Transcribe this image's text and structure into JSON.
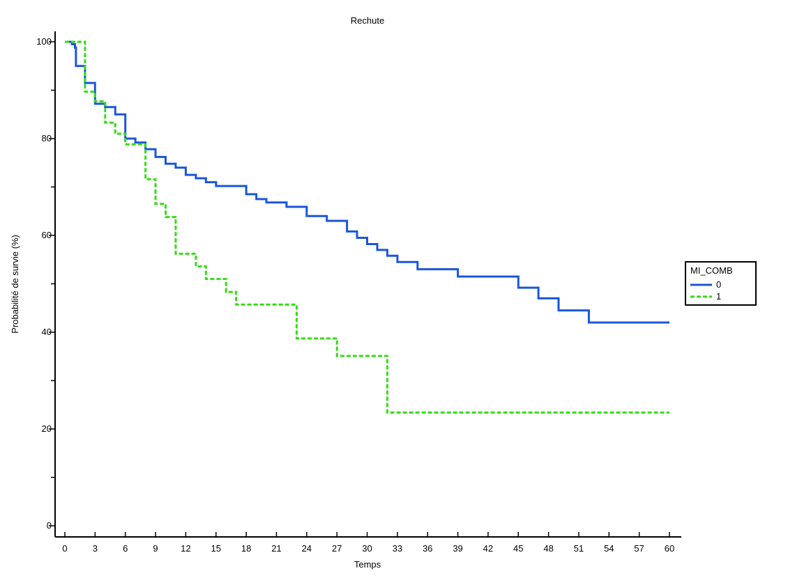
{
  "chart_data": {
    "type": "line",
    "subtype": "kaplan-meier step",
    "title": "Rechute",
    "xlabel": "Temps",
    "ylabel": "Probabilité de survie (%)",
    "xlim": [
      0,
      60
    ],
    "ylim": [
      0,
      100
    ],
    "x_ticks": [
      "0",
      "3",
      "6",
      "9",
      "12",
      "15",
      "18",
      "21",
      "24",
      "27",
      "30",
      "33",
      "36",
      "39",
      "42",
      "45",
      "48",
      "51",
      "54",
      "57",
      "60"
    ],
    "y_ticks": [
      "0",
      "20",
      "40",
      "60",
      "80",
      "100"
    ],
    "y_minor_step": 10,
    "grid": false,
    "legend": {
      "title": "MI_COMB",
      "placement": "right"
    },
    "series": [
      {
        "name": "0",
        "color": "#1a56db",
        "style": "solid",
        "points": [
          [
            0,
            100
          ],
          [
            0.7,
            99.5
          ],
          [
            1,
            98.8
          ],
          [
            1.1,
            95
          ],
          [
            2,
            91.5
          ],
          [
            3,
            87.2
          ],
          [
            4,
            86.5
          ],
          [
            5,
            85
          ],
          [
            6,
            80
          ],
          [
            7,
            79.2
          ],
          [
            8,
            77.8
          ],
          [
            9,
            76.2
          ],
          [
            10,
            74.8
          ],
          [
            11,
            74
          ],
          [
            12,
            72.5
          ],
          [
            13,
            71.8
          ],
          [
            14,
            71
          ],
          [
            15,
            70.2
          ],
          [
            18,
            68.5
          ],
          [
            19,
            67.5
          ],
          [
            20,
            66.8
          ],
          [
            22,
            65.9
          ],
          [
            24,
            64
          ],
          [
            26,
            63
          ],
          [
            28,
            60.8
          ],
          [
            29,
            59.5
          ],
          [
            30,
            58.2
          ],
          [
            31,
            57
          ],
          [
            32,
            55.8
          ],
          [
            33,
            54.5
          ],
          [
            35,
            53
          ],
          [
            39,
            51.5
          ],
          [
            45,
            49.2
          ],
          [
            47,
            47
          ],
          [
            49,
            44.5
          ],
          [
            52,
            42
          ],
          [
            60,
            42
          ]
        ]
      },
      {
        "name": "1",
        "color": "#33dd11",
        "style": "dashed",
        "points": [
          [
            0,
            100
          ],
          [
            2,
            89.7
          ],
          [
            3,
            87.7
          ],
          [
            4,
            83.3
          ],
          [
            5,
            81
          ],
          [
            6,
            78.8
          ],
          [
            8,
            71.6
          ],
          [
            9,
            66.5
          ],
          [
            10,
            63.8
          ],
          [
            11,
            56.2
          ],
          [
            13,
            53.6
          ],
          [
            14,
            51
          ],
          [
            16,
            48.3
          ],
          [
            17,
            45.7
          ],
          [
            23,
            38.7
          ],
          [
            27,
            35.1
          ],
          [
            32,
            23.4
          ],
          [
            60,
            23.4
          ]
        ]
      }
    ]
  }
}
